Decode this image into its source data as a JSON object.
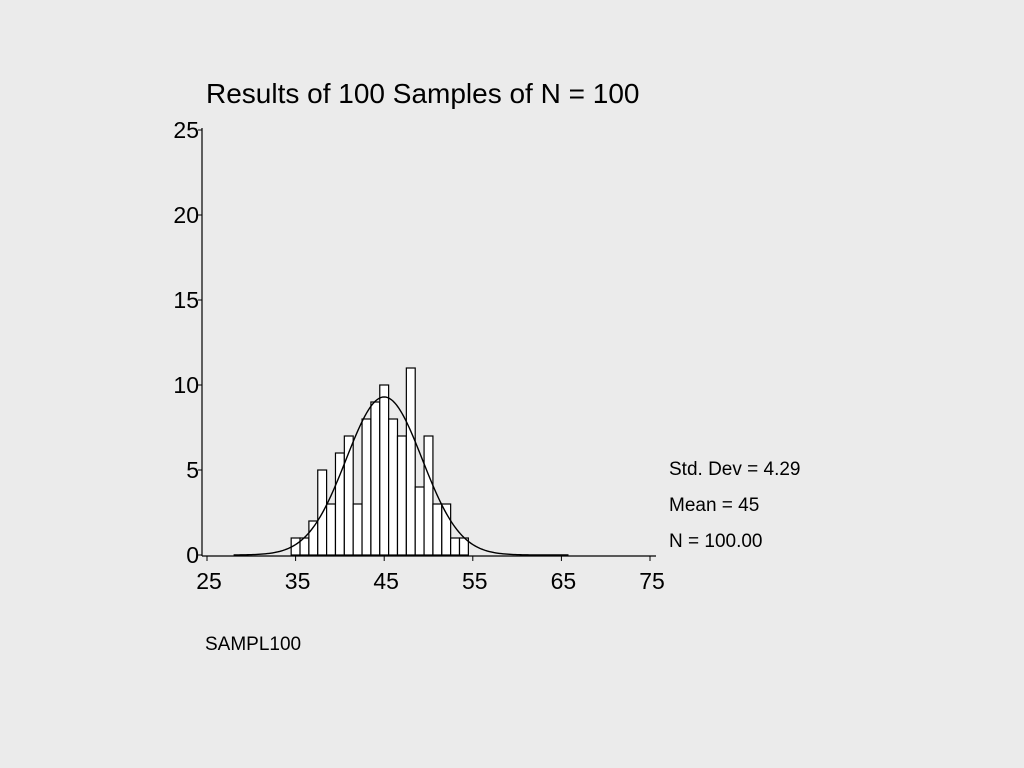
{
  "chart_data": {
    "type": "bar",
    "title": "Results of 100 Samples of N = 100",
    "xlabel": "SAMPL100",
    "ylabel": "",
    "xlim": [
      25,
      75
    ],
    "ylim": [
      0,
      25
    ],
    "x_ticks": [
      "25",
      "35",
      "45",
      "55",
      "65",
      "75"
    ],
    "y_ticks": [
      "0",
      "5",
      "10",
      "15",
      "20",
      "25"
    ],
    "bin_width": 1,
    "bins": [
      {
        "x": 35,
        "count": 1
      },
      {
        "x": 36,
        "count": 1
      },
      {
        "x": 37,
        "count": 2
      },
      {
        "x": 38,
        "count": 5
      },
      {
        "x": 39,
        "count": 3
      },
      {
        "x": 40,
        "count": 6
      },
      {
        "x": 41,
        "count": 7
      },
      {
        "x": 42,
        "count": 3
      },
      {
        "x": 43,
        "count": 8
      },
      {
        "x": 44,
        "count": 9
      },
      {
        "x": 45,
        "count": 10
      },
      {
        "x": 46,
        "count": 8
      },
      {
        "x": 47,
        "count": 7
      },
      {
        "x": 48,
        "count": 11
      },
      {
        "x": 49,
        "count": 4
      },
      {
        "x": 50,
        "count": 7
      },
      {
        "x": 51,
        "count": 3
      },
      {
        "x": 52,
        "count": 3
      },
      {
        "x": 53,
        "count": 1
      },
      {
        "x": 54,
        "count": 1
      }
    ],
    "normal_curve": {
      "mean": 45,
      "std_dev": 4.29,
      "n": 100
    },
    "stats": {
      "std_dev": "Std. Dev = 4.29",
      "mean": "Mean = 45",
      "n": "N = 100.00"
    }
  }
}
